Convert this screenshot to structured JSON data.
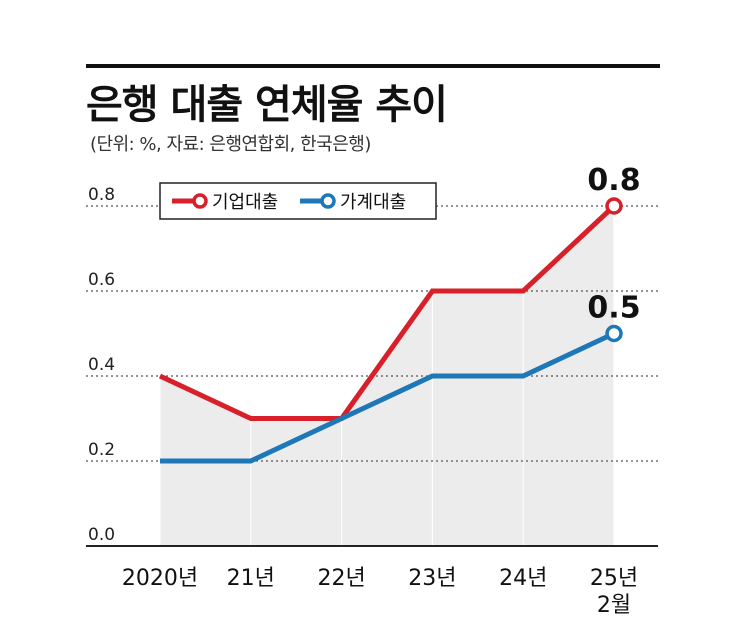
{
  "title": "은행 대출 연체율 추이",
  "subtitle": "(단위: %, 자료: 은행연합회, 한국은행)",
  "colors": {
    "corporate": "#d7202a",
    "household": "#1e78b8",
    "area": "#ececec",
    "grid": "#555555"
  },
  "chart_data": {
    "type": "line",
    "categories": [
      "2020년",
      "21년",
      "22년",
      "23년",
      "24년",
      "25년 2월"
    ],
    "category_lines": [
      [
        "2020년"
      ],
      [
        "21년"
      ],
      [
        "22년"
      ],
      [
        "23년"
      ],
      [
        "24년"
      ],
      [
        "25년",
        "2월"
      ]
    ],
    "yticks": [
      "0.0",
      "0.2",
      "0.4",
      "0.6",
      "0.8"
    ],
    "ylim": [
      0,
      0.8
    ],
    "grid": "dotted horizontal",
    "legend": "top-left",
    "series": [
      {
        "name": "기업대출",
        "values": [
          0.4,
          0.3,
          0.3,
          0.6,
          0.6,
          0.8
        ],
        "end_label": "0.8"
      },
      {
        "name": "가계대출",
        "values": [
          0.2,
          0.2,
          0.3,
          0.4,
          0.4,
          0.5
        ],
        "end_label": "0.5"
      }
    ]
  }
}
